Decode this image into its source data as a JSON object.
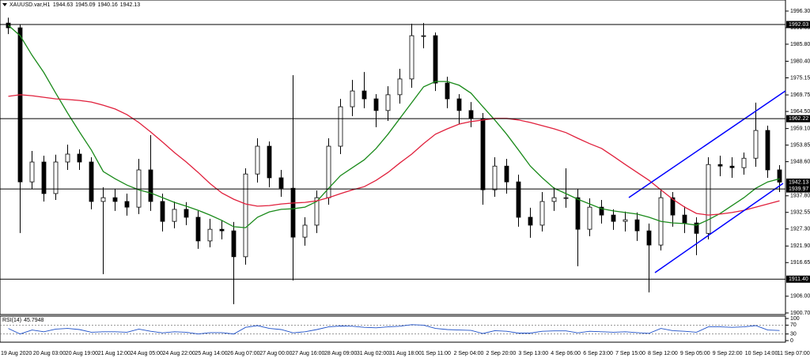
{
  "chart_data": {
    "type": "candlestick",
    "title": "XAUUSD.var,H1",
    "last_bar": {
      "open": 1944.63,
      "high": 1945.09,
      "low": 1940.16,
      "close": 1942.13
    },
    "ylim": [
      1900.2,
      1999.8
    ],
    "yticks": [
      {
        "value": 1996.3,
        "label": "1996.30"
      },
      {
        "value": 1991.05,
        "label": "1991.05"
      },
      {
        "value": 1985.8,
        "label": "1985.80"
      },
      {
        "value": 1980.4,
        "label": "1980.40"
      },
      {
        "value": 1975.15,
        "label": "1975.15"
      },
      {
        "value": 1969.75,
        "label": "1969.75"
      },
      {
        "value": 1964.5,
        "label": "1964.50"
      },
      {
        "value": 1959.1,
        "label": "1959.10"
      },
      {
        "value": 1953.85,
        "label": "1953.85"
      },
      {
        "value": 1948.6,
        "label": "1948.60"
      },
      {
        "value": 1937.8,
        "label": "1937.80"
      },
      {
        "value": 1932.55,
        "label": "1932.55"
      },
      {
        "value": 1927.3,
        "label": "1927.30"
      },
      {
        "value": 1921.9,
        "label": "1921.90"
      },
      {
        "value": 1916.65,
        "label": "1916.65"
      },
      {
        "value": 1906.0,
        "label": "1906.00"
      },
      {
        "value": 1900.7,
        "label": "1900.70"
      }
    ],
    "levels": [
      {
        "value": 1992.03,
        "label": "1992.03"
      },
      {
        "value": 1962.22,
        "label": "1962.22"
      },
      {
        "value": 1939.97,
        "label": "1939.97"
      },
      {
        "value": 1911.4,
        "label": "1911.40"
      }
    ],
    "time_labels": [
      "19 Aug 2020",
      "20 Aug 03:00",
      "20 Aug 19:00",
      "21 Aug 12:00",
      "24 Aug 05:00",
      "24 Aug 22:00",
      "25 Aug 14:00",
      "26 Aug 07:00",
      "27 Aug 00:00",
      "27 Aug 16:00",
      "28 Aug 09:00",
      "31 Aug 02:00",
      "31 Aug 18:00",
      "1 Sep 11:00",
      "2 Sep 04:00",
      "2 Sep 20:00",
      "3 Sep 13:00",
      "4 Sep 06:00",
      "6 Sep 23:00",
      "7 Sep 15:00",
      "8 Sep 12:00",
      "9 Sep 05:00",
      "9 Sep 22:00",
      "10 Sep 14:00",
      "11 Sep 07:00"
    ],
    "candles": {
      "open": [
        1992.5,
        1991.0,
        1942.2,
        1948.5,
        1938.5,
        1948.5,
        1951.0,
        1948.5,
        1936.0,
        1937.2,
        1936.0,
        1934.2,
        1946.0,
        1936.0,
        1929.7,
        1933.5,
        1931.0,
        1923.5,
        1927.2,
        1926.7,
        1918.5,
        1944.7,
        1953.5,
        1943.5,
        1940.2,
        1924.7,
        1928.5,
        1937.2,
        1953.5,
        1966.0,
        1971.0,
        1968.5,
        1964.8,
        1969.8,
        1974.8,
        1988.5,
        1988.5,
        1973.5,
        1968.5,
        1964.8,
        1962.3,
        1939.7,
        1947.2,
        1942.2,
        1931.0,
        1928.5,
        1936.0,
        1937.2,
        1937.2,
        1927.2,
        1934.2,
        1931.7,
        1929.7,
        1930.2,
        1926.7,
        1922.2,
        1937.2,
        1931.7,
        1929.2,
        1925.9,
        1947.7,
        1947.2,
        1946.7,
        1949.7,
        1958.5,
        1946.0
      ],
      "high": [
        1994.2,
        1992.0,
        1952.0,
        1950.5,
        1950.8,
        1954.0,
        1952.5,
        1950.0,
        1940.5,
        1940.0,
        1938.5,
        1949.5,
        1957.0,
        1938.5,
        1936.0,
        1935.8,
        1933.0,
        1930.5,
        1930.0,
        1929.5,
        1946.5,
        1956.0,
        1955.0,
        1946.0,
        1976.0,
        1931.0,
        1939.5,
        1956.0,
        1968.5,
        1974.5,
        1977.0,
        1970.0,
        1972.5,
        1978.0,
        1992.3,
        1992.5,
        1989.5,
        1975.5,
        1970.0,
        1967.5,
        1964.0,
        1950.0,
        1949.5,
        1944.5,
        1934.0,
        1939.0,
        1940.5,
        1946.5,
        1940.0,
        1937.0,
        1936.5,
        1933.5,
        1932.8,
        1932.5,
        1929.0,
        1939.5,
        1939.0,
        1934.5,
        1931.0,
        1950.0,
        1950.5,
        1950.0,
        1951.5,
        1967.3,
        1960.0,
        1947.5
      ],
      "low": [
        1989.0,
        1926.0,
        1940.0,
        1936.0,
        1936.5,
        1946.0,
        1946.0,
        1933.5,
        1913.0,
        1933.0,
        1931.5,
        1932.0,
        1933.0,
        1926.5,
        1927.5,
        1928.5,
        1921.0,
        1921.5,
        1924.0,
        1903.5,
        1916.0,
        1942.0,
        1940.5,
        1937.5,
        1911.0,
        1922.0,
        1926.0,
        1935.0,
        1951.0,
        1963.0,
        1965.5,
        1959.5,
        1961.5,
        1967.0,
        1972.0,
        1984.5,
        1971.0,
        1965.5,
        1960.5,
        1959.5,
        1935.0,
        1937.5,
        1938.5,
        1928.0,
        1924.5,
        1926.5,
        1933.0,
        1934.0,
        1915.5,
        1925.0,
        1929.0,
        1927.0,
        1926.5,
        1923.5,
        1907.2,
        1920.5,
        1928.0,
        1926.0,
        1919.0,
        1924.0,
        1944.0,
        1943.5,
        1944.5,
        1947.0,
        1943.5,
        1939.0
      ],
      "close": [
        1991.0,
        1942.2,
        1948.5,
        1938.5,
        1948.5,
        1951.0,
        1948.5,
        1936.0,
        1937.2,
        1936.0,
        1934.2,
        1946.0,
        1936.0,
        1929.7,
        1933.5,
        1931.0,
        1923.5,
        1927.2,
        1926.7,
        1918.5,
        1944.7,
        1953.5,
        1943.5,
        1940.2,
        1924.7,
        1928.5,
        1937.2,
        1953.5,
        1966.0,
        1971.0,
        1968.5,
        1964.8,
        1969.8,
        1974.8,
        1988.5,
        1988.5,
        1973.5,
        1968.5,
        1964.8,
        1962.3,
        1939.7,
        1947.2,
        1942.2,
        1931.0,
        1928.5,
        1936.0,
        1937.2,
        1937.2,
        1927.2,
        1934.2,
        1931.7,
        1929.7,
        1930.2,
        1926.7,
        1922.2,
        1937.2,
        1931.7,
        1929.2,
        1925.9,
        1947.7,
        1947.2,
        1946.7,
        1949.7,
        1958.5,
        1946.0,
        1942.13
      ]
    },
    "moving_averages": [
      {
        "color": "#1a8a1a",
        "values": [
          1991.8,
          1988.5,
          1982.3,
          1976.8,
          1970.3,
          1964.0,
          1958.0,
          1952.3,
          1945.5,
          1943.2,
          1941.2,
          1939.7,
          1938.7,
          1937.2,
          1935.7,
          1934.5,
          1933.2,
          1931.7,
          1930.0,
          1928.0,
          1927.7,
          1931.0,
          1932.7,
          1933.5,
          1933.7,
          1934.2,
          1936.0,
          1940.2,
          1944.2,
          1946.7,
          1949.2,
          1952.8,
          1957.3,
          1962.3,
          1967.3,
          1972.3,
          1974.0,
          1974.0,
          1972.8,
          1970.3,
          1966.0,
          1961.8,
          1957.3,
          1952.3,
          1947.2,
          1943.5,
          1940.2,
          1938.5,
          1936.7,
          1935.2,
          1933.7,
          1933.0,
          1932.5,
          1932.0,
          1931.0,
          1929.7,
          1929.2,
          1929.0,
          1928.5,
          1930.2,
          1932.2,
          1934.7,
          1937.2,
          1940.2,
          1942.2,
          1943.2
        ]
      },
      {
        "color": "#e0203c",
        "values": [
          1969.3,
          1969.8,
          1969.5,
          1969.0,
          1968.5,
          1968.3,
          1968.0,
          1967.5,
          1966.5,
          1965.3,
          1963.5,
          1961.0,
          1958.0,
          1954.8,
          1951.5,
          1948.5,
          1945.2,
          1941.7,
          1938.7,
          1936.7,
          1935.2,
          1934.5,
          1934.7,
          1935.2,
          1935.5,
          1935.7,
          1936.2,
          1937.2,
          1938.5,
          1939.7,
          1940.7,
          1942.7,
          1945.2,
          1948.2,
          1951.0,
          1954.3,
          1957.3,
          1959.0,
          1960.5,
          1961.3,
          1961.8,
          1962.3,
          1962.3,
          1961.8,
          1961.0,
          1960.0,
          1959.0,
          1957.8,
          1956.0,
          1954.3,
          1952.8,
          1950.3,
          1947.7,
          1945.2,
          1942.7,
          1939.7,
          1936.7,
          1934.2,
          1932.2,
          1931.7,
          1932.0,
          1932.5,
          1933.2,
          1934.2,
          1935.2,
          1936.2
        ]
      }
    ],
    "rsi": {
      "title": "RSI(14)",
      "color": "#1e50c8",
      "ylim": [
        0,
        100
      ],
      "yticks": [
        100,
        70,
        30,
        0
      ],
      "values": [
        55,
        30,
        48,
        40,
        52,
        55,
        50,
        38,
        40,
        40,
        38,
        52,
        42,
        35,
        40,
        38,
        30,
        36,
        36,
        30,
        60,
        68,
        55,
        50,
        35,
        40,
        50,
        62,
        66,
        65,
        60,
        58,
        62,
        65,
        72,
        70,
        55,
        50,
        48,
        46,
        32,
        45,
        42,
        34,
        34,
        42,
        44,
        44,
        35,
        42,
        40,
        38,
        40,
        36,
        33,
        55,
        45,
        42,
        38,
        62,
        62,
        60,
        62,
        68,
        48,
        45.7948
      ]
    }
  }
}
